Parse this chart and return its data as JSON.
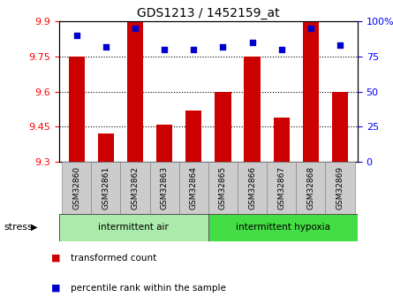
{
  "title": "GDS1213 / 1452159_at",
  "samples": [
    "GSM32860",
    "GSM32861",
    "GSM32862",
    "GSM32863",
    "GSM32864",
    "GSM32865",
    "GSM32866",
    "GSM32867",
    "GSM32868",
    "GSM32869"
  ],
  "red_values": [
    9.75,
    9.42,
    9.9,
    9.46,
    9.52,
    9.6,
    9.75,
    9.49,
    9.9,
    9.6
  ],
  "blue_values": [
    90,
    82,
    95,
    80,
    80,
    82,
    85,
    80,
    95,
    83
  ],
  "ylim_left": [
    9.3,
    9.9
  ],
  "ylim_right": [
    0,
    100
  ],
  "yticks_left": [
    9.3,
    9.45,
    9.6,
    9.75,
    9.9
  ],
  "yticks_right": [
    0,
    25,
    50,
    75,
    100
  ],
  "ytick_labels_right": [
    "0",
    "25",
    "50",
    "75",
    "100%"
  ],
  "group1_label": "intermittent air",
  "group2_label": "intermittent hypoxia",
  "stress_label": "stress",
  "legend1": "transformed count",
  "legend2": "percentile rank within the sample",
  "bar_color": "#cc0000",
  "dot_color": "#0000cc",
  "group1_color": "#aaeaaa",
  "group2_color": "#44dd44",
  "label_bg_color": "#cccccc",
  "bar_width": 0.55,
  "group1_count": 5,
  "group2_count": 5
}
